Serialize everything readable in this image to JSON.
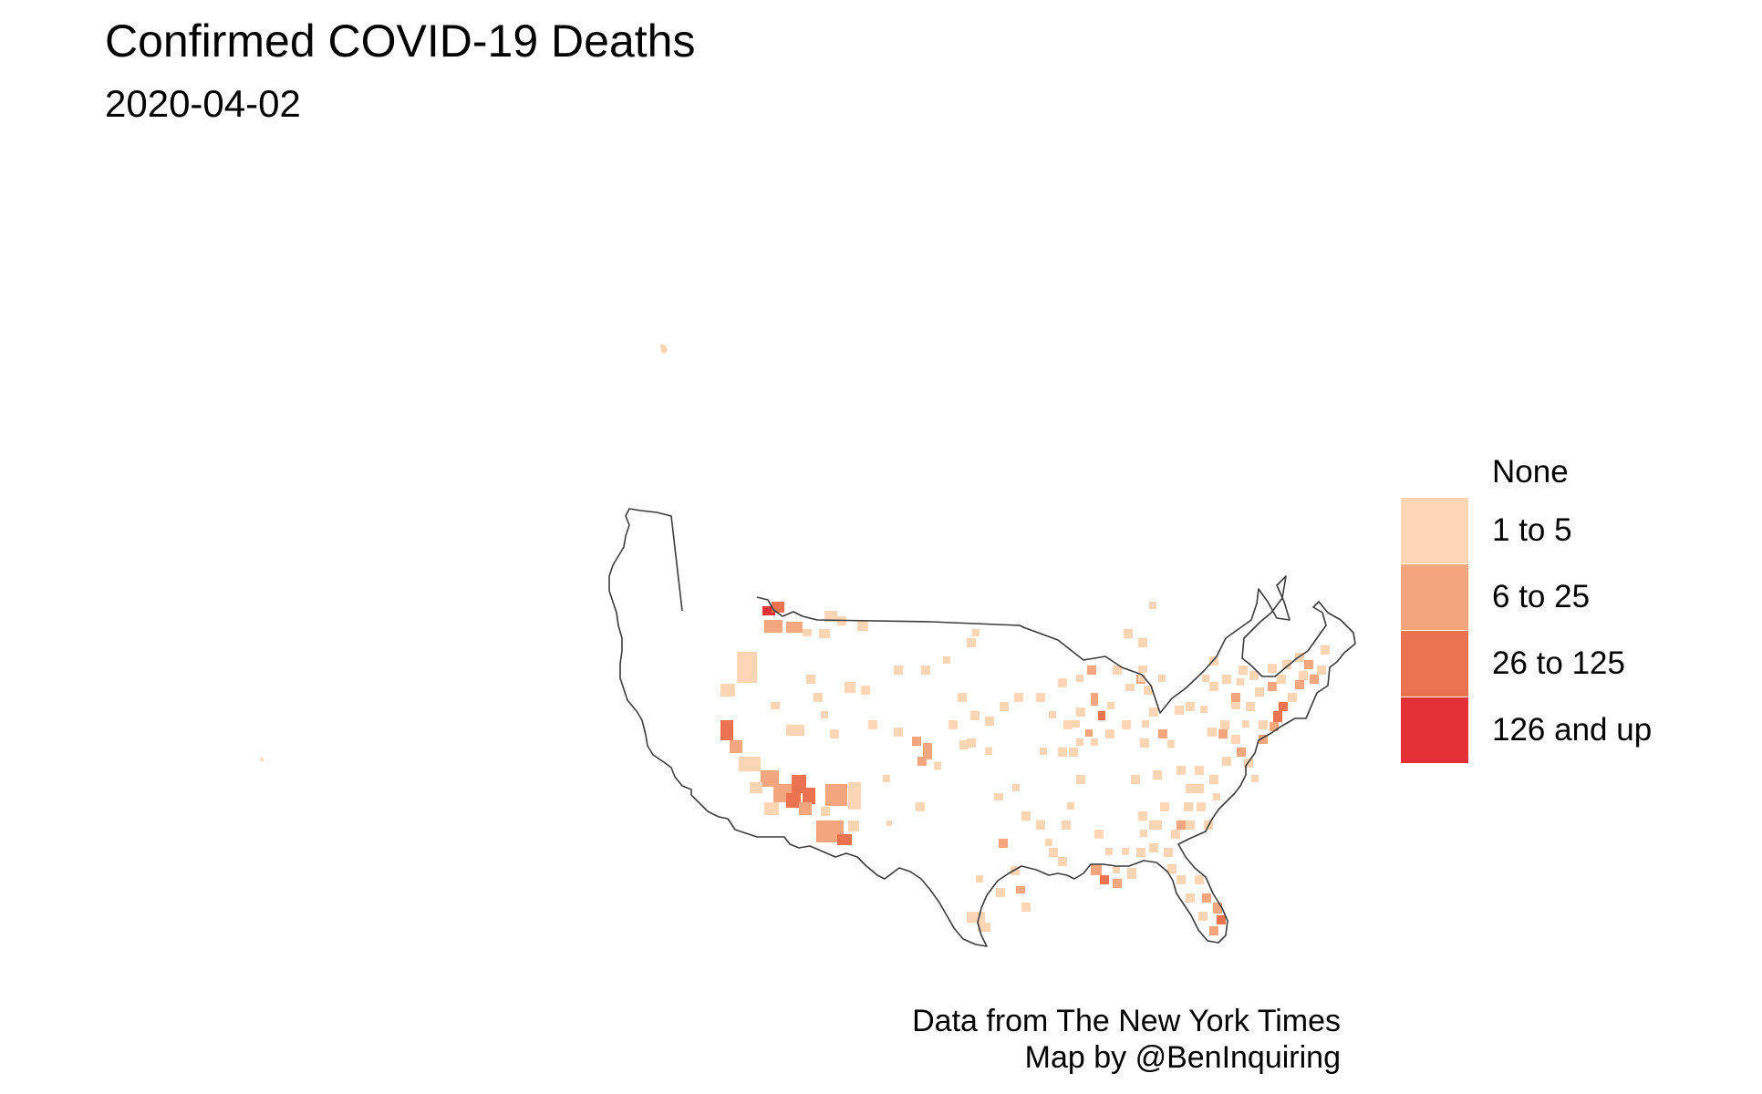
{
  "title": "Confirmed COVID-19 Deaths",
  "subtitle": "2020-04-02",
  "legend": {
    "items": [
      {
        "label": "None",
        "color": "#ffffff"
      },
      {
        "label": "1 to 5",
        "color": "#fcd5b5"
      },
      {
        "label": "6 to 25",
        "color": "#f4a77f"
      },
      {
        "label": "26 to 125",
        "color": "#ec7350"
      },
      {
        "label": "126 and up",
        "color": "#e33237"
      }
    ]
  },
  "caption": {
    "line1": "Data from The New York Times",
    "line2": "Map by @BenInquiring"
  },
  "colors": {
    "state_border": "#3c3c3c",
    "background": "#ffffff"
  }
}
